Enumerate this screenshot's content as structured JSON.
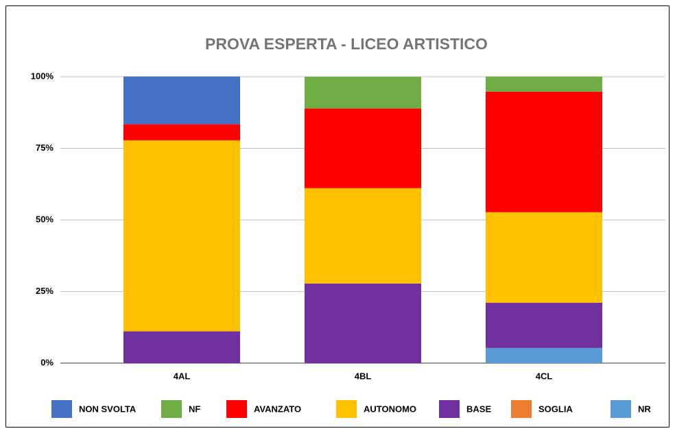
{
  "chart_data": {
    "type": "stacked_bar",
    "title": "PROVA ESPERTA - LICEO ARTISTICO",
    "categories": [
      "4AL",
      "4BL",
      "4CL"
    ],
    "series": [
      {
        "name": "NON SVOLTA",
        "color": "#4472c4",
        "values": [
          16.7,
          0,
          0
        ]
      },
      {
        "name": "NF",
        "color": "#70ad47",
        "values": [
          0,
          11.1,
          5.3
        ]
      },
      {
        "name": "AVANZATO",
        "color": "#ff0000",
        "values": [
          5.6,
          27.8,
          42.1
        ]
      },
      {
        "name": "AUTONOMO",
        "color": "#ffc000",
        "values": [
          66.7,
          33.3,
          31.6
        ]
      },
      {
        "name": "BASE",
        "color": "#7030a0",
        "values": [
          11.1,
          27.8,
          15.8
        ]
      },
      {
        "name": "SOGLIA",
        "color": "#ed7d31",
        "values": [
          0,
          0,
          0
        ]
      },
      {
        "name": "NR",
        "color": "#5b9bd5",
        "values": [
          0,
          0,
          5.3
        ]
      }
    ],
    "ylim": [
      0,
      100
    ],
    "yticks": [
      {
        "value": 0,
        "label": "0%"
      },
      {
        "value": 25,
        "label": "25%"
      },
      {
        "value": 50,
        "label": "50%"
      },
      {
        "value": 75,
        "label": "75%"
      },
      {
        "value": 100,
        "label": "100%"
      }
    ],
    "grid": true,
    "legend": "bottom"
  }
}
